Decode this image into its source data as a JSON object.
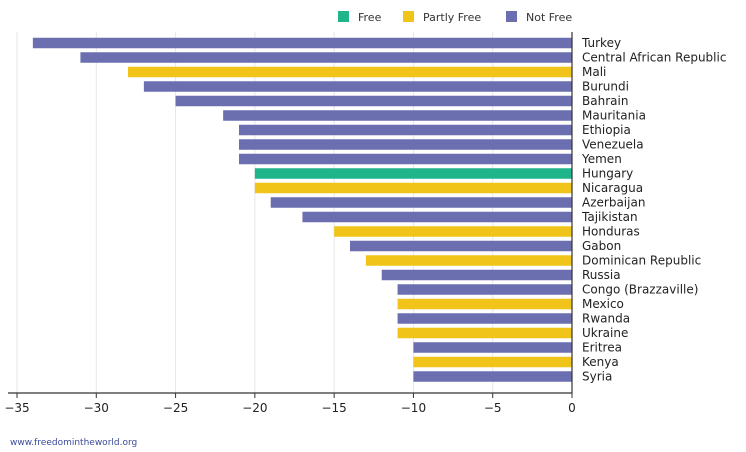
{
  "chart_data": {
    "type": "bar",
    "orientation": "horizontal",
    "categories": [
      "Turkey",
      "Central African Republic",
      "Mali",
      "Burundi",
      "Bahrain",
      "Mauritania",
      "Ethiopia",
      "Venezuela",
      "Yemen",
      "Hungary",
      "Nicaragua",
      "Azerbaijan",
      "Tajikistan",
      "Honduras",
      "Gabon",
      "Dominican Republic",
      "Russia",
      "Congo (Brazzaville)",
      "Mexico",
      "Rwanda",
      "Ukraine",
      "Eritrea",
      "Kenya",
      "Syria"
    ],
    "values": [
      -34,
      -31,
      -28,
      -27,
      -25,
      -22,
      -21,
      -21,
      -21,
      -20,
      -20,
      -19,
      -17,
      -15,
      -14,
      -13,
      -12,
      -11,
      -11,
      -11,
      -11,
      -10,
      -10,
      -10
    ],
    "status": [
      "Not Free",
      "Not Free",
      "Partly Free",
      "Not Free",
      "Not Free",
      "Not Free",
      "Not Free",
      "Not Free",
      "Not Free",
      "Free",
      "Partly Free",
      "Not Free",
      "Not Free",
      "Partly Free",
      "Not Free",
      "Partly Free",
      "Not Free",
      "Not Free",
      "Partly Free",
      "Not Free",
      "Partly Free",
      "Not Free",
      "Partly Free",
      "Not Free"
    ],
    "xlim": [
      -35,
      0
    ],
    "xticks": [
      -35,
      -30,
      -25,
      -20,
      -15,
      -10,
      -5,
      0
    ],
    "xtick_labels": [
      "−35",
      "−30",
      "−25",
      "−20",
      "−15",
      "−10",
      "−5",
      "0"
    ],
    "grid": "vertical",
    "legend_position": "top",
    "legend": [
      {
        "name": "Free",
        "color": "#1fb48a"
      },
      {
        "name": "Partly Free",
        "color": "#f0c419"
      },
      {
        "name": "Not Free",
        "color": "#6b6faf"
      }
    ]
  },
  "source": "www.freedomintheworld.org"
}
